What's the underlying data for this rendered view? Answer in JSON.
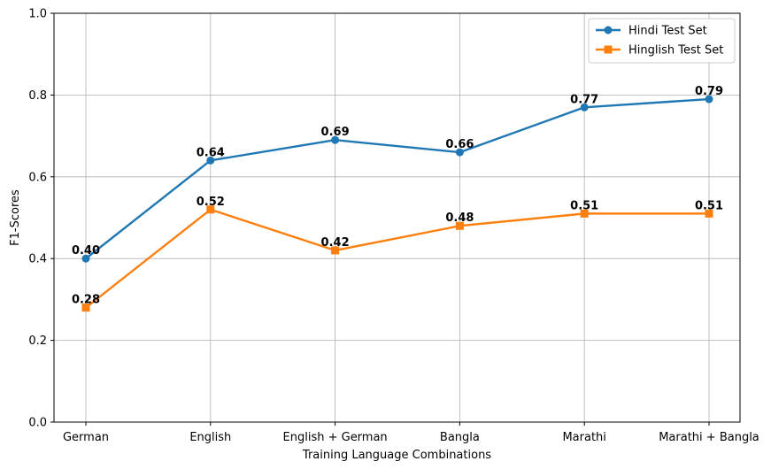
{
  "chart_data": {
    "type": "line",
    "title": "",
    "xlabel": "Training Language Combinations",
    "ylabel": "F1-Scores",
    "categories": [
      "German",
      "English",
      "English + German",
      "Bangla",
      "Marathi",
      "Marathi + Bangla"
    ],
    "ylim": [
      0,
      1.0
    ],
    "yticks": [
      "0.0",
      "0.2",
      "0.4",
      "0.6",
      "0.8",
      "1.0"
    ],
    "grid": true,
    "legend_position": "top-right",
    "series": [
      {
        "name": "Hindi Test Set",
        "color": "#1f77b4",
        "marker": "circle",
        "values": [
          0.4,
          0.64,
          0.69,
          0.66,
          0.77,
          0.79
        ],
        "labels": [
          "0.40",
          "0.64",
          "0.69",
          "0.66",
          "0.77",
          "0.79"
        ]
      },
      {
        "name": "Hinglish Test Set",
        "color": "#ff7f0e",
        "marker": "square",
        "values": [
          0.28,
          0.52,
          0.42,
          0.48,
          0.51,
          0.51
        ],
        "labels": [
          "0.28",
          "0.52",
          "0.42",
          "0.48",
          "0.51",
          "0.51"
        ]
      }
    ]
  }
}
